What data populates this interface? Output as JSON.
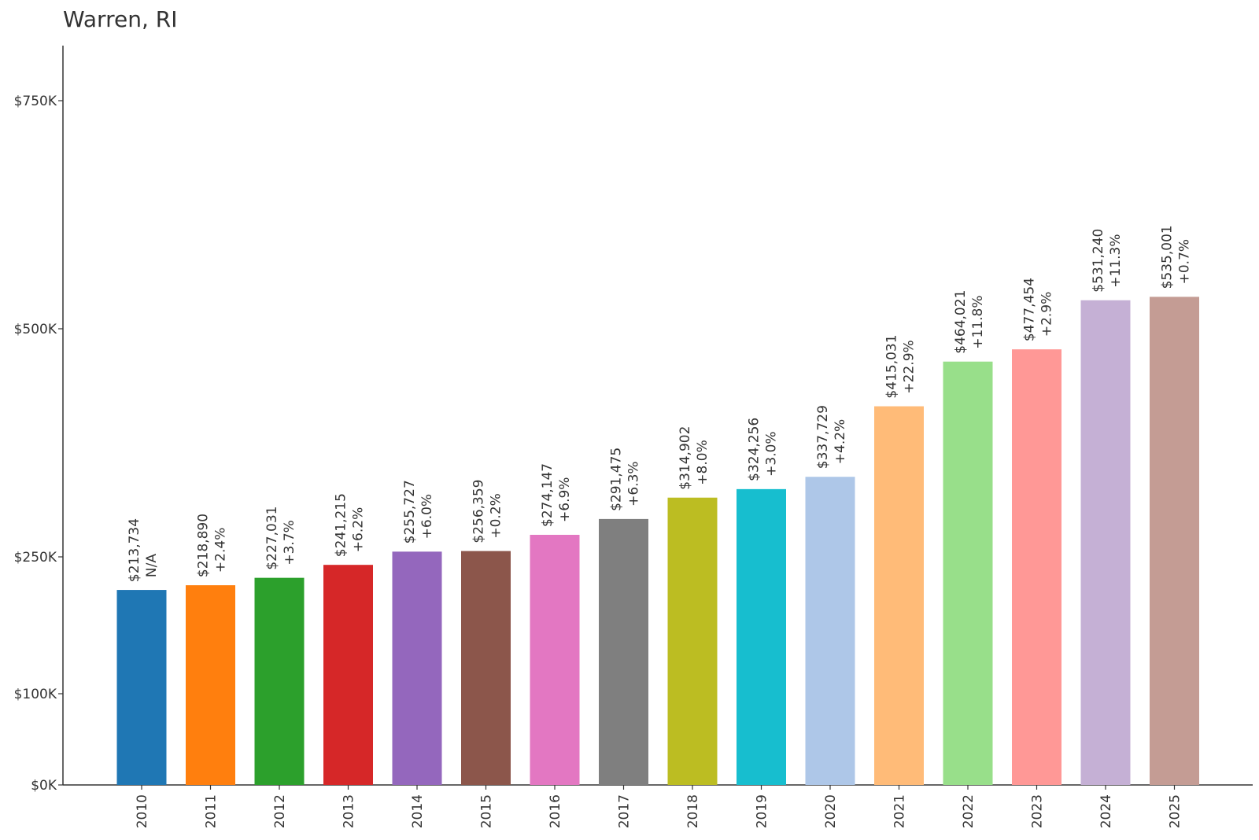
{
  "chart_data": {
    "type": "bar",
    "title": "Warren, RI",
    "xlabel": "",
    "ylabel": "",
    "ylim": [
      0,
      750000
    ],
    "yticks": [
      {
        "value": 0,
        "label": "$0K"
      },
      {
        "value": 100000,
        "label": "$100K"
      },
      {
        "value": 250000,
        "label": "$250K"
      },
      {
        "value": 500000,
        "label": "$500K"
      },
      {
        "value": 750000,
        "label": "$750K"
      }
    ],
    "categories": [
      "2010",
      "2011",
      "2012",
      "2013",
      "2014",
      "2015",
      "2016",
      "2017",
      "2018",
      "2019",
      "2020",
      "2021",
      "2022",
      "2023",
      "2024",
      "2025"
    ],
    "values": [
      213734,
      218890,
      227031,
      241215,
      255727,
      256359,
      274147,
      291475,
      314902,
      324256,
      337729,
      415031,
      464021,
      477454,
      531240,
      535001
    ],
    "value_labels": [
      "$213,734",
      "$218,890",
      "$227,031",
      "$241,215",
      "$255,727",
      "$256,359",
      "$274,147",
      "$291,475",
      "$314,902",
      "$324,256",
      "$337,729",
      "$415,031",
      "$464,021",
      "$477,454",
      "$531,240",
      "$535,001"
    ],
    "change_labels": [
      "N/A",
      "+2.4%",
      "+3.7%",
      "+6.2%",
      "+6.0%",
      "+0.2%",
      "+6.9%",
      "+6.3%",
      "+8.0%",
      "+3.0%",
      "+4.2%",
      "+22.9%",
      "+11.8%",
      "+2.9%",
      "+11.3%",
      "+0.7%"
    ],
    "colors": [
      "#1f77b4",
      "#ff7f0e",
      "#2ca02c",
      "#d62728",
      "#9467bd",
      "#8c564b",
      "#e377c2",
      "#7f7f7f",
      "#bcbd22",
      "#17becf",
      "#aec7e8",
      "#ffbb78",
      "#98df8a",
      "#ff9896",
      "#c5b0d5",
      "#c49c94"
    ],
    "grid": false,
    "legend": "none"
  }
}
